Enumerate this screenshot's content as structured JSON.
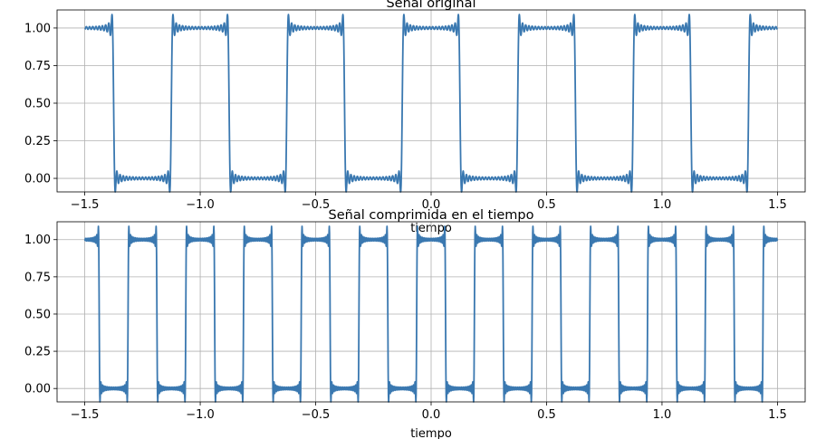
{
  "chart_data": [
    {
      "type": "line",
      "title": "Señal original",
      "xlabel": "tiempo",
      "ylabel": "",
      "xlim": [
        -1.62,
        1.62
      ],
      "ylim": [
        -0.09,
        1.12
      ],
      "xticks": [
        -1.5,
        -1.0,
        -0.5,
        0.0,
        0.5,
        1.0,
        1.5
      ],
      "xtick_labels": [
        "−1.5",
        "−1.0",
        "−0.5",
        "0.0",
        "0.5",
        "1.0",
        "1.5"
      ],
      "yticks": [
        0.0,
        0.25,
        0.5,
        0.75,
        1.0
      ],
      "ytick_labels": [
        "0.00",
        "0.25",
        "0.50",
        "0.75",
        "1.00"
      ],
      "grid": true,
      "color": "#3a78b0",
      "series": [
        {
          "description": "square wave with Gibbs ripples (Fourier approximation)",
          "period": 0.5,
          "duty_start_high_at": -1.5,
          "levels": [
            0,
            1
          ],
          "overshoot": 0.09,
          "x_range": [
            -1.5,
            1.5
          ],
          "transitions": [
            -1.375,
            -1.125,
            -0.875,
            -0.625,
            -0.375,
            -0.125,
            0.125,
            0.375,
            0.625,
            0.875,
            1.125,
            1.375
          ]
        }
      ]
    },
    {
      "type": "line",
      "title": "Señal comprimida en el tiempo",
      "xlabel": "tiempo",
      "ylabel": "",
      "xlim": [
        -1.62,
        1.62
      ],
      "ylim": [
        -0.09,
        1.12
      ],
      "xticks": [
        -1.5,
        -1.0,
        -0.5,
        0.0,
        0.5,
        1.0,
        1.5
      ],
      "xtick_labels": [
        "−1.5",
        "−1.0",
        "−0.5",
        "0.0",
        "0.5",
        "1.0",
        "1.5"
      ],
      "yticks": [
        0.0,
        0.25,
        0.5,
        0.75,
        1.0
      ],
      "ytick_labels": [
        "0.00",
        "0.25",
        "0.50",
        "0.75",
        "1.00"
      ],
      "grid": true,
      "color": "#3a78b0",
      "series": [
        {
          "description": "square wave compressed by factor 2 with Gibbs ripples",
          "period": 0.25,
          "duty_start_high_at": -1.5,
          "levels": [
            0,
            1
          ],
          "overshoot": 0.09,
          "x_range": [
            -1.5,
            1.5
          ],
          "transitions": [
            -1.4375,
            -1.3125,
            -1.1875,
            -1.0625,
            -0.9375,
            -0.8125,
            -0.6875,
            -0.5625,
            -0.4375,
            -0.3125,
            -0.1875,
            -0.0625,
            0.0625,
            0.1875,
            0.3125,
            0.4375,
            0.5625,
            0.6875,
            0.8125,
            0.9375,
            1.0625,
            1.1875,
            1.3125,
            1.4375
          ]
        }
      ]
    }
  ]
}
